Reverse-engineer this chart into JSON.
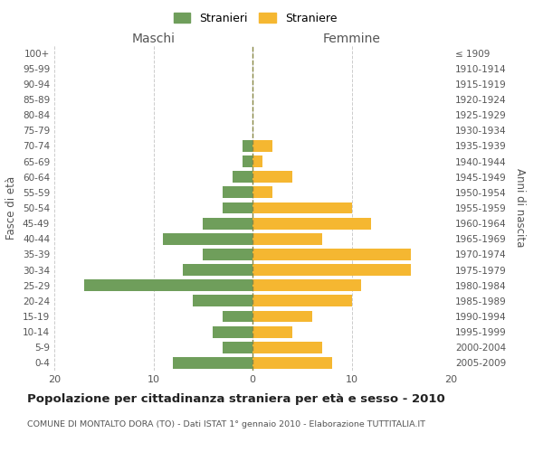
{
  "age_groups": [
    "100+",
    "95-99",
    "90-94",
    "85-89",
    "80-84",
    "75-79",
    "70-74",
    "65-69",
    "60-64",
    "55-59",
    "50-54",
    "45-49",
    "40-44",
    "35-39",
    "30-34",
    "25-29",
    "20-24",
    "15-19",
    "10-14",
    "5-9",
    "0-4"
  ],
  "birth_years": [
    "≤ 1909",
    "1910-1914",
    "1915-1919",
    "1920-1924",
    "1925-1929",
    "1930-1934",
    "1935-1939",
    "1940-1944",
    "1945-1949",
    "1950-1954",
    "1955-1959",
    "1960-1964",
    "1965-1969",
    "1970-1974",
    "1975-1979",
    "1980-1984",
    "1985-1989",
    "1990-1994",
    "1995-1999",
    "2000-2004",
    "2005-2009"
  ],
  "maschi": [
    0,
    0,
    0,
    0,
    0,
    0,
    1,
    1,
    2,
    3,
    3,
    5,
    9,
    5,
    7,
    17,
    6,
    3,
    4,
    3,
    8
  ],
  "femmine": [
    0,
    0,
    0,
    0,
    0,
    0,
    2,
    1,
    4,
    2,
    10,
    12,
    7,
    16,
    16,
    11,
    10,
    6,
    4,
    7,
    8
  ],
  "maschi_color": "#6f9e5b",
  "femmine_color": "#f5b731",
  "title": "Popolazione per cittadinanza straniera per età e sesso - 2010",
  "subtitle": "COMUNE DI MONTALTO DORA (TO) - Dati ISTAT 1° gennaio 2010 - Elaborazione TUTTITALIA.IT",
  "xlabel_left": "Maschi",
  "xlabel_right": "Femmine",
  "ylabel_left": "Fasce di età",
  "ylabel_right": "Anni di nascita",
  "legend_maschi": "Stranieri",
  "legend_femmine": "Straniere",
  "xlim": 20,
  "background_color": "#ffffff",
  "grid_color": "#cccccc"
}
